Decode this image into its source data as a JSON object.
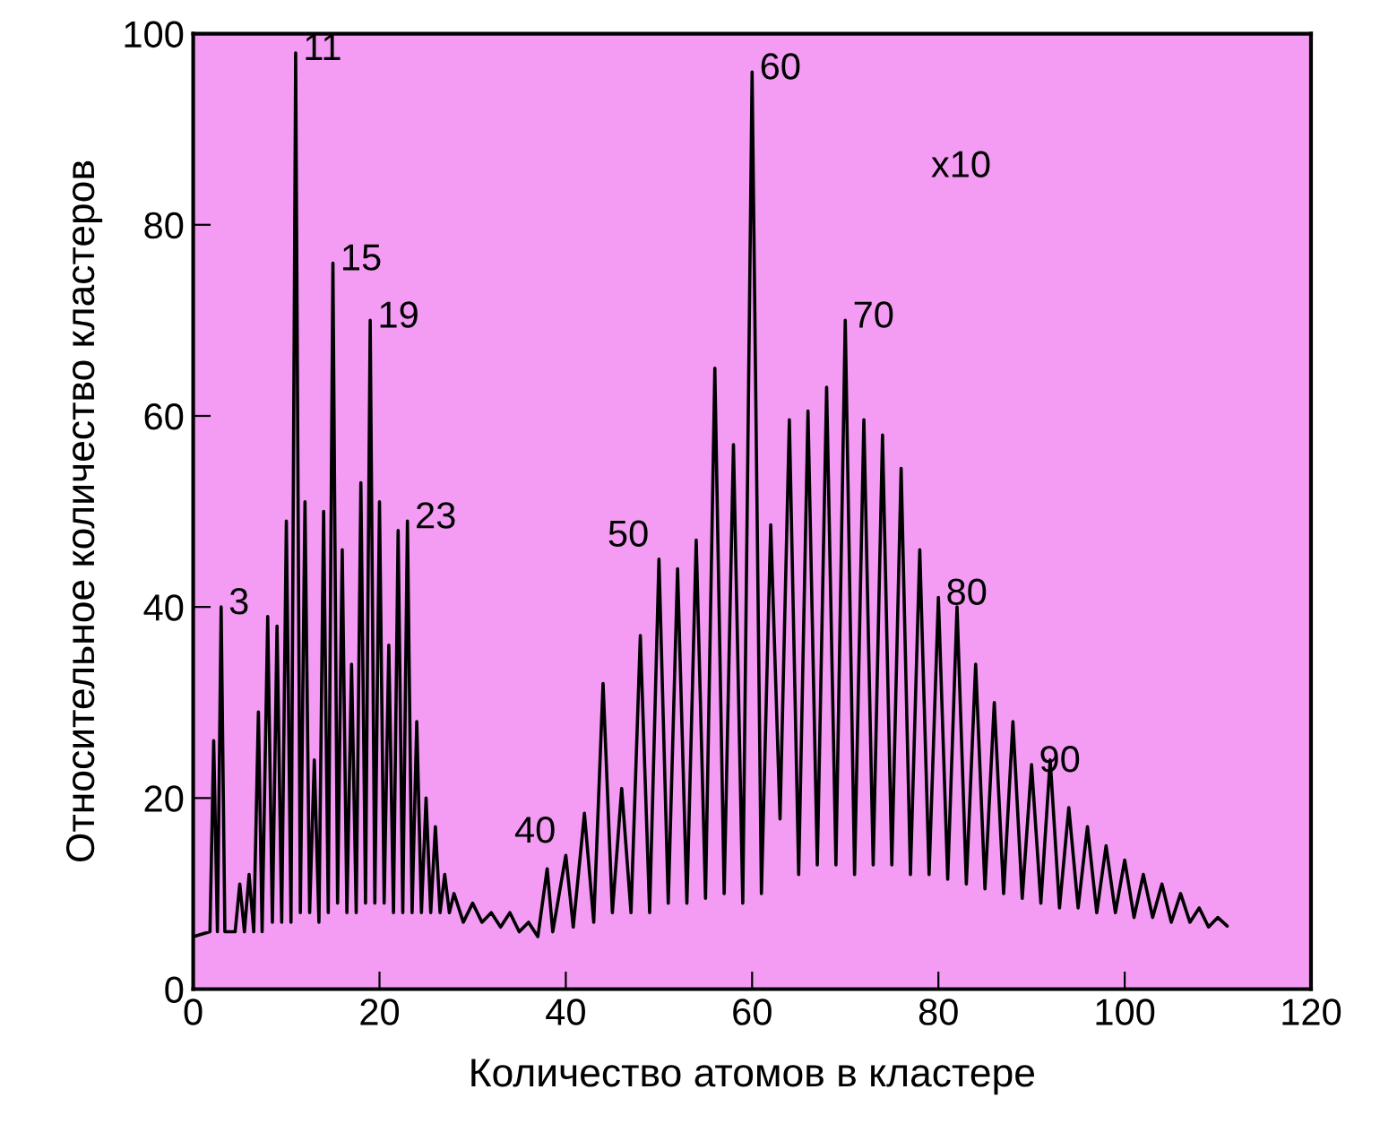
{
  "chart_data": {
    "type": "line",
    "xlabel": "Количество атомов в кластере",
    "ylabel": "Относительное количество кластеров",
    "xlim": [
      0,
      120
    ],
    "xticks": [
      0,
      20,
      40,
      60,
      80,
      100,
      120
    ],
    "ylim": [
      0,
      100
    ],
    "yticks": [
      0,
      20,
      40,
      60,
      80,
      100
    ],
    "grid": false,
    "legend": false,
    "marker": "none",
    "line_style": "solid",
    "series": [
      {
        "color": "#000000",
        "x": [
          0,
          1.8,
          2.2,
          2.6,
          3,
          3.4,
          4.5,
          5,
          5.5,
          6,
          6.5,
          7,
          7.4,
          8,
          8.5,
          9,
          9.5,
          10,
          10.5,
          11,
          11.5,
          12,
          12.5,
          13,
          13.5,
          14,
          14.5,
          15,
          15.5,
          16,
          16.5,
          17,
          17.5,
          18,
          18.5,
          19,
          19.5,
          20,
          20.5,
          21,
          21.5,
          22,
          22.5,
          23,
          23.5,
          24,
          24.5,
          25,
          25.5,
          26,
          26.5,
          27,
          27.5,
          28,
          29,
          30,
          31,
          32,
          33,
          34,
          35,
          36,
          37,
          38,
          38.6,
          40,
          40.8,
          42,
          43,
          44,
          45,
          46,
          47,
          48,
          49,
          50,
          51,
          52,
          53,
          54,
          55,
          56,
          57,
          58,
          59,
          60,
          61,
          62,
          63,
          64,
          65,
          66,
          67,
          68,
          69,
          70,
          71,
          72,
          73,
          74,
          75,
          76,
          77,
          78,
          79,
          80,
          81,
          82,
          83,
          84,
          85,
          86,
          87,
          88,
          89,
          90,
          91,
          92,
          93,
          94,
          95,
          96,
          97,
          98,
          99,
          100,
          101,
          102,
          103,
          104,
          105,
          106,
          107,
          108,
          109,
          110,
          111
        ],
        "values": [
          5.5,
          6,
          26,
          6,
          40,
          6,
          6,
          11,
          6,
          12,
          6,
          29,
          6,
          39,
          7,
          38,
          7,
          49,
          7,
          98,
          8,
          51,
          8,
          24,
          7,
          50,
          8,
          76,
          9,
          46,
          8,
          34,
          8,
          53,
          9,
          70,
          9,
          51,
          9,
          36,
          8,
          48,
          8,
          49,
          8,
          28,
          8,
          20,
          8,
          17,
          8,
          12,
          8,
          10,
          7,
          9,
          7,
          8,
          6.5,
          8,
          6,
          7,
          5.5,
          12.6,
          6,
          14,
          6.5,
          18.4,
          7,
          32,
          8,
          21,
          8,
          37,
          8,
          45,
          9,
          44,
          9,
          47,
          9.5,
          65,
          10,
          57,
          9,
          96,
          10,
          48.6,
          17.8,
          59.6,
          12,
          60.5,
          13,
          63,
          13,
          70,
          12,
          59.6,
          13,
          58,
          13,
          54.5,
          12,
          46,
          12,
          41,
          11.5,
          40,
          11,
          34,
          10.5,
          30,
          10,
          28,
          9.5,
          23.5,
          9,
          24,
          8.5,
          19,
          8.5,
          17,
          8,
          15,
          8,
          13.5,
          7.5,
          12,
          7.5,
          11,
          7,
          10,
          7,
          8.5,
          6.5,
          7.5,
          6.6
        ]
      }
    ],
    "annotations": [
      {
        "text": "3",
        "x": 3,
        "y": 40
      },
      {
        "text": "11",
        "x": 11,
        "y": 98
      },
      {
        "text": "15",
        "x": 15,
        "y": 76
      },
      {
        "text": "19",
        "x": 19,
        "y": 70
      },
      {
        "text": "23",
        "x": 23,
        "y": 49
      },
      {
        "text": "40",
        "x": 40,
        "y": 14
      },
      {
        "text": "50",
        "x": 50,
        "y": 45
      },
      {
        "text": "60",
        "x": 60,
        "y": 96
      },
      {
        "text": "70",
        "x": 70,
        "y": 70
      },
      {
        "text": "80",
        "x": 80,
        "y": 41
      },
      {
        "text": "90",
        "x": 90,
        "y": 23.5
      },
      "x10"
    ]
  }
}
